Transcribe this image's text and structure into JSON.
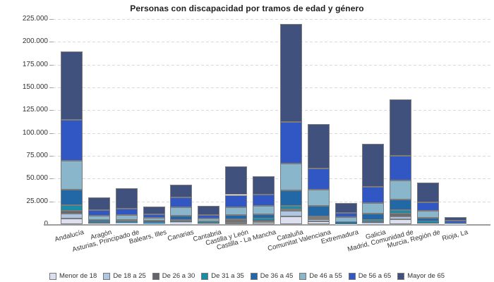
{
  "title": "Personas con discapacidad por tramos de edad y género",
  "chart_data": {
    "type": "bar",
    "stacked": true,
    "title": "Personas con discapacidad por tramos de edad y género",
    "xlabel": "",
    "ylabel": "",
    "ylim": [
      0,
      225000
    ],
    "ytick_step": 25000,
    "ytick_labels": [
      "0",
      "25.000",
      "50.000",
      "75.000",
      "100.000",
      "125.000",
      "150.000",
      "175.000",
      "200.000",
      "225.000"
    ],
    "grid": "horizontal-dashed",
    "legend_position": "bottom",
    "categories": [
      "Andalucía",
      "Aragón",
      "Asturias, Principado de",
      "Balears, Illes",
      "Canarias",
      "Cantabria",
      "Castilla y León",
      "Castilla - La Mancha",
      "Cataluña",
      "Comunitat Valenciana",
      "Extremadura",
      "Galicia",
      "Madrid, Comunidad de",
      "Murcia, Región de",
      "Rioja, La"
    ],
    "series": [
      {
        "name": "Menor de 18",
        "color": "#dcdff0",
        "values": [
          6000,
          600,
          700,
          400,
          1200,
          450,
          1650,
          2300,
          8800,
          2900,
          250,
          800,
          5450,
          600,
          100
        ]
      },
      {
        "name": "De 18 a 25",
        "color": "#aec5e3",
        "values": [
          5800,
          600,
          800,
          500,
          1100,
          600,
          1600,
          1900,
          6000,
          2550,
          400,
          1000,
          2900,
          700,
          100
        ]
      },
      {
        "name": "De 26 a 30",
        "color": "#63656b",
        "values": [
          3100,
          500,
          600,
          400,
          600,
          400,
          900,
          800,
          1800,
          1550,
          500,
          800,
          3550,
          500,
          100
        ]
      },
      {
        "name": "De 31 a 35",
        "color": "#1b8ba6",
        "values": [
          5800,
          700,
          800,
          500,
          1550,
          500,
          1300,
          1200,
          3900,
          1800,
          500,
          1800,
          3400,
          1000,
          100
        ]
      },
      {
        "name": "De 36 a 45",
        "color": "#2368a6",
        "values": [
          16850,
          2100,
          2000,
          1850,
          5100,
          1300,
          4650,
          4650,
          16300,
          11650,
          900,
          7300,
          11650,
          3900,
          200
        ]
      },
      {
        "name": "De 46 a 55",
        "color": "#89b6cb",
        "values": [
          32300,
          5000,
          5550,
          3250,
          8850,
          3100,
          8550,
          9550,
          29800,
          17400,
          4950,
          11650,
          20650,
          8250,
          400
        ]
      },
      {
        "name": "De 56 a 65",
        "color": "#3057c4",
        "values": [
          44800,
          5700,
          6450,
          3650,
          11100,
          4100,
          13450,
          12400,
          45300,
          23300,
          4900,
          17300,
          27200,
          9300,
          2600
        ]
      },
      {
        "name": "Mayor de 65",
        "color": "#41517d",
        "values": [
          74550,
          14000,
          22500,
          9000,
          13750,
          9550,
          31050,
          19950,
          108000,
          48600,
          10650,
          47350,
          62100,
          21750,
          3900
        ]
      }
    ]
  },
  "colors": {
    "background": "#ffffff",
    "grid": "#d9d9d9",
    "axis": "#9e9e9e",
    "segment_border": "#7b7b7b",
    "text": "#333333",
    "title_text": "#1f1f1f"
  }
}
